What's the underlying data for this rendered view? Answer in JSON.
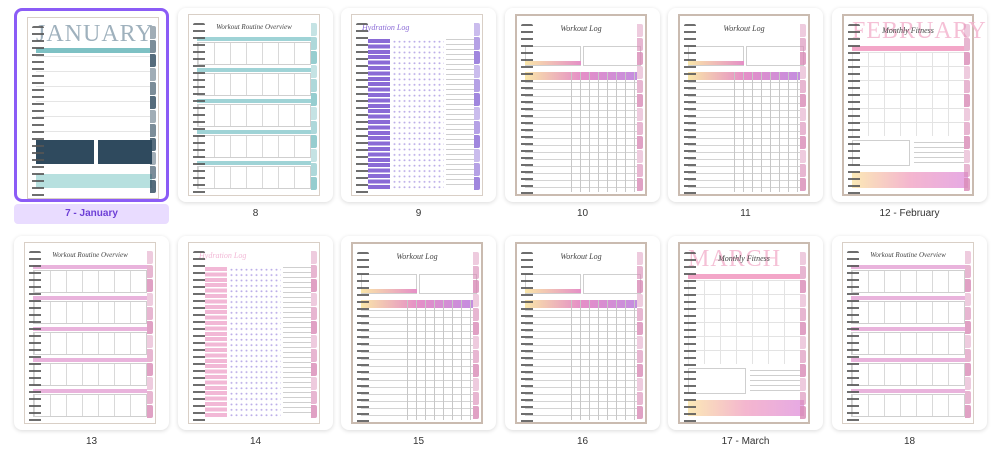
{
  "thumbnails": [
    {
      "label": "7 - January",
      "kind": "calendar",
      "big_title": "JANUARY",
      "accent": "#2f4a5e",
      "tab_color": "#2f4a5e",
      "selected": true
    },
    {
      "label": "8",
      "kind": "routine",
      "title": "Workout Routine Overview",
      "accent": "#9fd3d6",
      "tab_color": "#7ec1c4",
      "selected": false
    },
    {
      "label": "9",
      "kind": "hydration",
      "title": "Hydration Log",
      "accent": "#8a6ad6",
      "tab_color": "#8a6ad6",
      "selected": false
    },
    {
      "label": "10",
      "kind": "workout",
      "title": "Workout Log",
      "accent": "#e58fc7",
      "tab_color": "#d98bb6",
      "selected": false
    },
    {
      "label": "11",
      "kind": "workout",
      "title": "Workout Log",
      "accent": "#e58fc7",
      "tab_color": "#d98bb6",
      "selected": false
    },
    {
      "label": "12 - February",
      "kind": "monthly",
      "title": "Monthly Fitness",
      "big_title": "FEBRUARY",
      "accent": "#f4b6cf",
      "tab_color": "#d98bb6",
      "selected": false
    },
    {
      "label": "13",
      "kind": "routine",
      "title": "Workout Routine Overview",
      "accent": "#e9b3dc",
      "tab_color": "#d98bb6",
      "selected": false
    },
    {
      "label": "14",
      "kind": "hydration",
      "title": "Hydration Log",
      "accent": "#f2b8d6",
      "tab_color": "#d98bb6",
      "selected": false
    },
    {
      "label": "15",
      "kind": "workout",
      "title": "Workout Log",
      "accent": "#e58fc7",
      "tab_color": "#d98bb6",
      "selected": false
    },
    {
      "label": "16",
      "kind": "workout",
      "title": "Workout Log",
      "accent": "#e58fc7",
      "tab_color": "#d98bb6",
      "selected": false
    },
    {
      "label": "17 - March",
      "kind": "monthly",
      "title": "Monthly Fitness",
      "big_title": "MARCH",
      "accent": "#f4b6cf",
      "tab_color": "#d98bb6",
      "selected": false
    },
    {
      "label": "18",
      "kind": "routine",
      "title": "Workout Routine Overview",
      "accent": "#e9b3dc",
      "tab_color": "#d98bb6",
      "selected": false
    }
  ]
}
